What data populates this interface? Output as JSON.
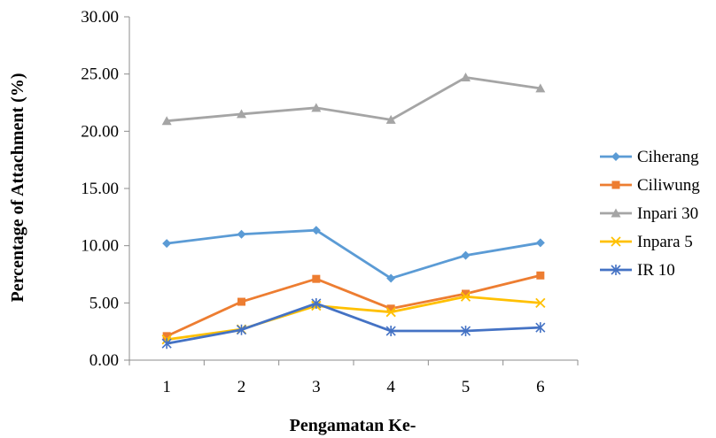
{
  "chart_data": {
    "type": "line",
    "xlabel": "Pengamatan Ke-",
    "ylabel": "Percentage of Attachment (%)",
    "categories": [
      "1",
      "2",
      "3",
      "4",
      "5",
      "6"
    ],
    "ylim": [
      0,
      30
    ],
    "yticks": [
      "0.00",
      "5.00",
      "10.00",
      "15.00",
      "20.00",
      "25.00",
      "30.00"
    ],
    "grid": false,
    "legend_position": "right",
    "series": [
      {
        "name": "Ciherang",
        "color": "#5B9BD5",
        "marker": "diamond",
        "values": [
          10.2,
          11.0,
          11.35,
          7.15,
          9.15,
          10.25
        ]
      },
      {
        "name": "Ciliwung",
        "color": "#ED7D31",
        "marker": "square",
        "values": [
          2.1,
          5.1,
          7.1,
          4.5,
          5.8,
          7.4
        ]
      },
      {
        "name": "Inpari 30",
        "color": "#A5A5A5",
        "marker": "triangle",
        "values": [
          20.9,
          21.5,
          22.05,
          21.0,
          24.7,
          23.75
        ]
      },
      {
        "name": "Inpara 5",
        "color": "#FFC000",
        "marker": "x",
        "values": [
          1.8,
          2.7,
          4.75,
          4.2,
          5.55,
          5.0
        ]
      },
      {
        "name": "IR 10",
        "color": "#4472C4",
        "marker": "star",
        "values": [
          1.45,
          2.65,
          4.95,
          2.55,
          2.55,
          2.85
        ]
      }
    ]
  }
}
